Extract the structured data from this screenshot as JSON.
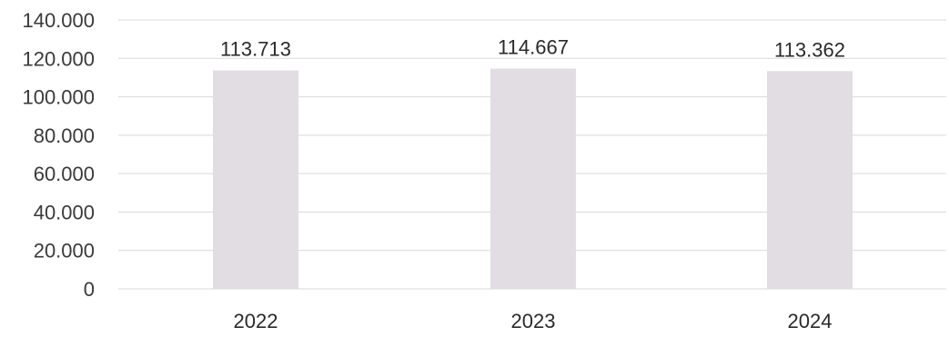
{
  "chart_data": {
    "type": "bar",
    "categories": [
      "2022",
      "2023",
      "2024"
    ],
    "values": [
      113713,
      114667,
      113362
    ],
    "data_labels": [
      "113.713",
      "114.667",
      "113.362"
    ],
    "y_tick_labels": [
      "0",
      "20.000",
      "40.000",
      "60.000",
      "80.000",
      "100.000",
      "120.000",
      "140.000"
    ],
    "y_tick_values": [
      0,
      20000,
      40000,
      60000,
      80000,
      100000,
      120000,
      140000
    ],
    "ylim": [
      0,
      140000
    ],
    "title": "",
    "xlabel": "",
    "ylabel": "",
    "grid": true,
    "legend": "none",
    "colors": {
      "bar": "#e2dde2",
      "grid": "#d9d9d9",
      "text": "#3a3a3a"
    }
  }
}
